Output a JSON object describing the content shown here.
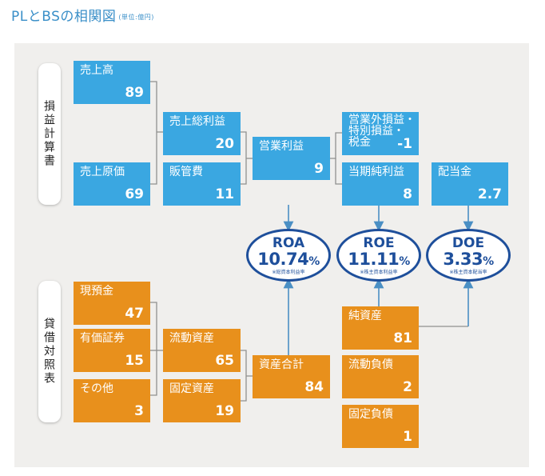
{
  "title": "PLとBSの相関図",
  "unit": "(単位:億円)",
  "sections": {
    "pl_label": "損益計算書",
    "bs_label": "貸借対照表"
  },
  "pl": {
    "sales": {
      "label": "売上高",
      "value": "89"
    },
    "cogs": {
      "label": "売上原価",
      "value": "69"
    },
    "gross_profit": {
      "label": "売上総利益",
      "value": "20"
    },
    "sga": {
      "label": "販管費",
      "value": "11"
    },
    "operating_profit": {
      "label": "営業利益",
      "value": "9"
    },
    "non_operating": {
      "label_lines": [
        "営業外損益・",
        "特別損益・",
        "税金"
      ],
      "value": "-1"
    },
    "net_income": {
      "label": "当期純利益",
      "value": "8"
    },
    "dividends": {
      "label": "配当金",
      "value": "2.7"
    }
  },
  "ratios": {
    "roa": {
      "name": "ROA",
      "value": "10.74",
      "pct": "%",
      "note": "※総資本利益率"
    },
    "roe": {
      "name": "ROE",
      "value": "11.11",
      "pct": "%",
      "note": "※株主資本利益率"
    },
    "doe": {
      "name": "DOE",
      "value": "3.33",
      "pct": "%",
      "note": "※株主資本配当率"
    }
  },
  "bs": {
    "cash": {
      "label": "現預金",
      "value": "47"
    },
    "securities": {
      "label": "有価証券",
      "value": "15"
    },
    "other": {
      "label": "その他",
      "value": "3"
    },
    "current_assets": {
      "label": "流動資産",
      "value": "65"
    },
    "fixed_assets": {
      "label": "固定資産",
      "value": "19"
    },
    "total_assets": {
      "label": "資産合計",
      "value": "84"
    },
    "net_assets": {
      "label": "純資産",
      "value": "81"
    },
    "current_liabilities": {
      "label": "流動負債",
      "value": "2"
    },
    "fixed_liabilities": {
      "label": "固定負債",
      "value": "1"
    }
  },
  "colors": {
    "blue_box": "#3aa7e1",
    "orange_box": "#e8901c",
    "ratio_border": "#1e4f9b",
    "title": "#3a8fc8"
  }
}
